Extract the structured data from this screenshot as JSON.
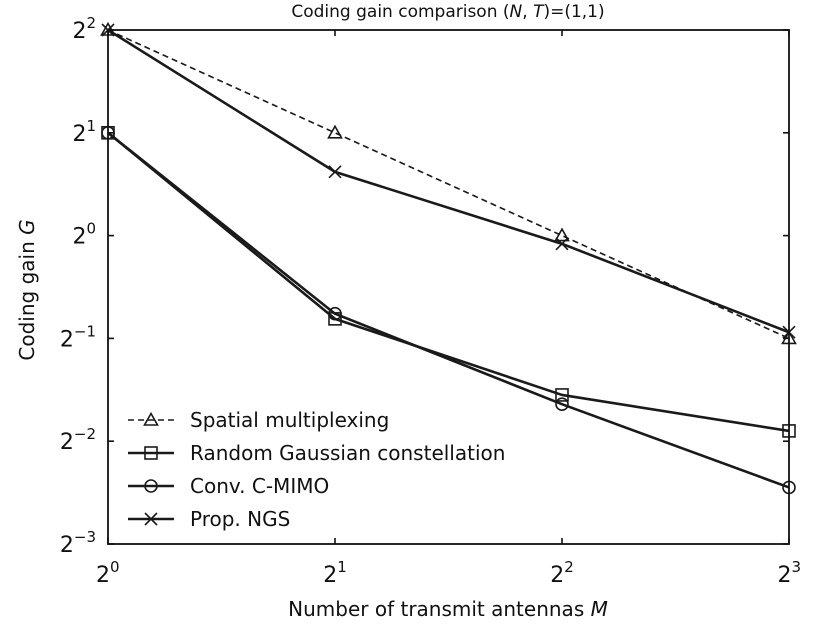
{
  "chart_data": {
    "type": "line",
    "title": "Coding gain comparison (N, T)=(1,1)",
    "title_parts": {
      "prefix": "Coding gain comparison (",
      "n": "N",
      "sep": ", ",
      "t": "T",
      "suffix": ")=(1,1)"
    },
    "xlabel": "Number of transmit antennas M",
    "xlabel_parts": {
      "text": "Number of transmit antennas ",
      "var": "M"
    },
    "ylabel": "Coding gain G",
    "ylabel_parts": {
      "text": "Coding gain ",
      "var": "G"
    },
    "x_scale": "log2",
    "y_scale": "log2",
    "x": [
      1,
      2,
      4,
      8
    ],
    "x_exponents": [
      0,
      1,
      2,
      3
    ],
    "x_ticks": [
      {
        "base": "2",
        "exp": "0"
      },
      {
        "base": "2",
        "exp": "1"
      },
      {
        "base": "2",
        "exp": "2"
      },
      {
        "base": "2",
        "exp": "3"
      }
    ],
    "y_exponent_range": [
      -3,
      2
    ],
    "y_ticks": [
      {
        "base": "2",
        "exp": "2",
        "value": 2
      },
      {
        "base": "2",
        "exp": "1",
        "value": 1
      },
      {
        "base": "2",
        "exp": "0",
        "value": 0
      },
      {
        "base": "2",
        "exp": "−1",
        "value": -1
      },
      {
        "base": "2",
        "exp": "−2",
        "value": -2
      },
      {
        "base": "2",
        "exp": "−3",
        "value": -3
      }
    ],
    "series": [
      {
        "name": "Spatial multiplexing",
        "marker": "triangle",
        "dashed": true,
        "log2_values": [
          2.0,
          1.0,
          0.0,
          -1.0
        ]
      },
      {
        "name": "Random Gaussian constellation",
        "marker": "square",
        "dashed": false,
        "log2_values": [
          1.0,
          -0.81,
          -1.55,
          -1.9
        ]
      },
      {
        "name": "Conv. C-MIMO",
        "marker": "circle",
        "dashed": false,
        "log2_values": [
          1.0,
          -0.76,
          -1.64,
          -2.45
        ]
      },
      {
        "name": "Prop. NGS",
        "marker": "x",
        "dashed": false,
        "log2_values": [
          2.0,
          0.62,
          -0.08,
          -0.94
        ]
      }
    ],
    "legend_position": "lower-left",
    "grid": false
  },
  "colors": {
    "line": "#1a1a1a",
    "axis": "#111111",
    "background": "#ffffff"
  }
}
